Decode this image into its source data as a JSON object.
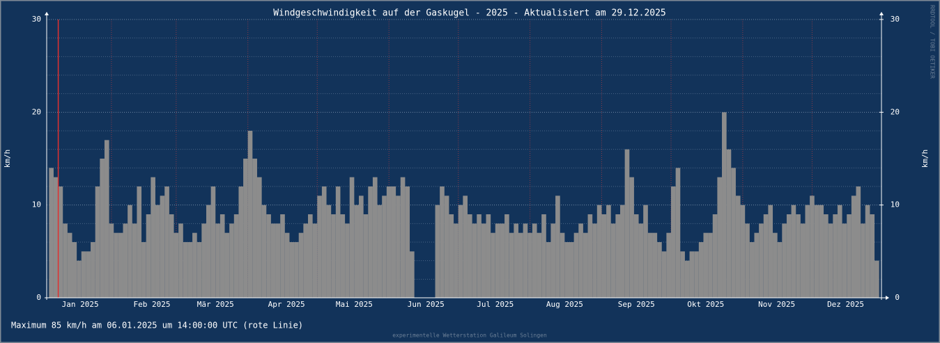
{
  "chart_data": {
    "type": "bar",
    "title": "Windgeschwindigkeit auf der Gaskugel - 2025 - Aktualisiert am 29.12.2025",
    "ylabel": "km/h",
    "y2label": "km/h",
    "ylim": [
      0,
      30
    ],
    "yticks": [
      0,
      10,
      20,
      30
    ],
    "y2lim": [
      0,
      30
    ],
    "y2ticks": [
      0,
      10,
      20,
      30
    ],
    "yminor_ticks": [
      2,
      4,
      6,
      8,
      12,
      14,
      16,
      18,
      22,
      24,
      26,
      28
    ],
    "xlim": [
      3,
      364
    ],
    "xticks": [
      {
        "value": 17.5,
        "label": "Jan 2025"
      },
      {
        "value": 48.5,
        "label": "Feb 2025"
      },
      {
        "value": 76,
        "label": "Mär 2025"
      },
      {
        "value": 106.7,
        "label": "Apr 2025"
      },
      {
        "value": 136,
        "label": "Mai 2025"
      },
      {
        "value": 167,
        "label": "Jun 2025"
      },
      {
        "value": 197,
        "label": "Jul 2025"
      },
      {
        "value": 227,
        "label": "Aug 2025"
      },
      {
        "value": 258,
        "label": "Sep 2025"
      },
      {
        "value": 288,
        "label": "Okt 2025"
      },
      {
        "value": 318.7,
        "label": "Nov 2025"
      },
      {
        "value": 348.5,
        "label": "Dez 2025"
      }
    ],
    "xminor_ticks": [
      31,
      59,
      90,
      120,
      151,
      181,
      212,
      243,
      273,
      304,
      334
    ],
    "grid": true,
    "color": "#8c8c8c",
    "maximum_marker_x": 8,
    "annotation": "Maximum  85 km/h am 06.01.2025 um 14:00:00 UTC (rote Linie)",
    "footer": "experimentelle Wetterstation Galileum Solingen",
    "credit": "RRDTOOL / TOBI OETIKER",
    "x": [
      5,
      7,
      9,
      11,
      13,
      15,
      17,
      19,
      21,
      23,
      25,
      27,
      29,
      31,
      33,
      35,
      37,
      39,
      41,
      43,
      45,
      47,
      49,
      51,
      53,
      55,
      57,
      59,
      61,
      63,
      65,
      67,
      69,
      71,
      73,
      75,
      77,
      79,
      81,
      83,
      85,
      87,
      89,
      91,
      93,
      95,
      97,
      99,
      101,
      103,
      105,
      107,
      109,
      111,
      113,
      115,
      117,
      119,
      121,
      123,
      125,
      127,
      129,
      131,
      133,
      135,
      137,
      139,
      141,
      143,
      145,
      147,
      149,
      151,
      153,
      155,
      157,
      159,
      161,
      172,
      174,
      176,
      178,
      180,
      182,
      184,
      186,
      188,
      190,
      192,
      194,
      196,
      198,
      200,
      202,
      204,
      206,
      208,
      210,
      212,
      214,
      216,
      218,
      220,
      222,
      224,
      226,
      228,
      230,
      232,
      234,
      236,
      238,
      240,
      242,
      244,
      246,
      248,
      250,
      252,
      254,
      256,
      258,
      260,
      262,
      264,
      266,
      268,
      270,
      272,
      274,
      276,
      278,
      280,
      282,
      284,
      286,
      288,
      290,
      292,
      294,
      296,
      298,
      300,
      302,
      304,
      306,
      308,
      310,
      312,
      314,
      316,
      318,
      320,
      322,
      324,
      326,
      328,
      330,
      332,
      334,
      336,
      338,
      340,
      342,
      344,
      346,
      348,
      350,
      352,
      354,
      356,
      358,
      360,
      362
    ],
    "values": [
      14,
      13,
      12,
      8,
      7,
      6,
      4,
      5,
      5,
      6,
      12,
      15,
      17,
      8,
      7,
      7,
      8,
      10,
      8,
      12,
      6,
      9,
      13,
      10,
      11,
      12,
      9,
      7,
      8,
      6,
      6,
      7,
      6,
      8,
      10,
      12,
      8,
      9,
      7,
      8,
      9,
      12,
      15,
      18,
      15,
      13,
      10,
      9,
      8,
      8,
      9,
      7,
      6,
      6,
      7,
      8,
      9,
      8,
      11,
      12,
      10,
      9,
      12,
      9,
      8,
      13,
      10,
      11,
      9,
      12,
      13,
      10,
      11,
      12,
      12,
      11,
      13,
      12,
      5,
      10,
      12,
      11,
      9,
      8,
      10,
      11,
      9,
      8,
      9,
      8,
      9,
      7,
      8,
      8,
      9,
      7,
      8,
      7,
      8,
      7,
      8,
      7,
      9,
      6,
      8,
      11,
      7,
      6,
      6,
      7,
      8,
      7,
      9,
      8,
      10,
      9,
      10,
      8,
      9,
      10,
      16,
      13,
      9,
      8,
      10,
      7,
      7,
      6,
      5,
      7,
      12,
      14,
      5,
      4,
      5,
      5,
      6,
      7,
      7,
      9,
      13,
      20,
      16,
      14,
      11,
      10,
      8,
      6,
      7,
      8,
      9,
      10,
      7,
      6,
      8,
      9,
      10,
      9,
      8,
      10,
      11,
      10,
      10,
      9,
      8,
      9,
      10,
      8,
      9,
      11,
      12,
      8,
      10,
      9,
      4
    ]
  }
}
